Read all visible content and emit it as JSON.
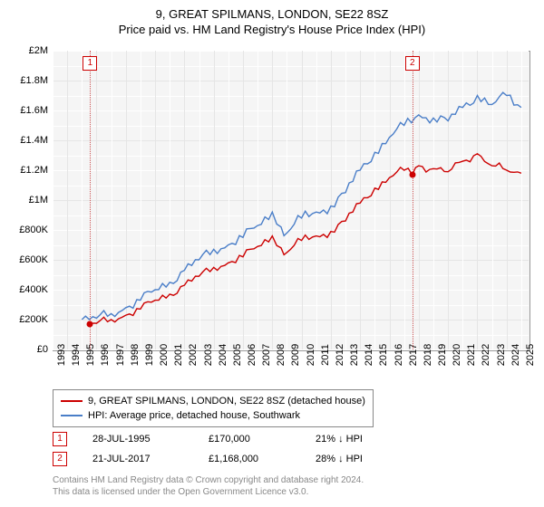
{
  "title": "9, GREAT SPILMANS, LONDON, SE22 8SZ",
  "subtitle": "Price paid vs. HM Land Registry's House Price Index (HPI)",
  "chart": {
    "type": "line",
    "background_color": "#f5f5f5",
    "grid_major_color": "#e5e5e5",
    "grid_minor_color": "#ffffff",
    "border_color": "#999999",
    "x_years": [
      1993,
      1994,
      1995,
      1996,
      1997,
      1998,
      1999,
      2000,
      2001,
      2002,
      2003,
      2004,
      2005,
      2006,
      2007,
      2008,
      2009,
      2010,
      2011,
      2012,
      2013,
      2014,
      2015,
      2016,
      2017,
      2018,
      2019,
      2020,
      2021,
      2022,
      2023,
      2024,
      2025
    ],
    "xlim": [
      1993,
      2025.5
    ],
    "y_ticks": [
      0,
      200000,
      400000,
      600000,
      800000,
      1000000,
      1200000,
      1400000,
      1600000,
      1800000,
      2000000
    ],
    "y_tick_labels": [
      "£0",
      "£200K",
      "£400K",
      "£600K",
      "£800K",
      "£1M",
      "£1.2M",
      "£1.4M",
      "£1.6M",
      "£1.8M",
      "£2M"
    ],
    "ylim": [
      0,
      2000000
    ],
    "label_fontsize": 11,
    "series": [
      {
        "name": "property",
        "label": "9, GREAT SPILMANS, LONDON, SE22 8SZ (detached house)",
        "color": "#cc0000",
        "line_width": 1.4,
        "data_x": [
          1995.56,
          1996,
          1997,
          1998,
          1999,
          2000,
          2001,
          2002,
          2003,
          2004,
          2005,
          2006,
          2007,
          2008,
          2008.6,
          2009,
          2010,
          2011,
          2012,
          2013,
          2014,
          2015,
          2016,
          2017,
          2017.56,
          2018,
          2019,
          2020,
          2021,
          2022,
          2023,
          2024,
          2025
        ],
        "data_y": [
          170000,
          175000,
          200000,
          230000,
          270000,
          330000,
          370000,
          430000,
          490000,
          550000,
          580000,
          620000,
          690000,
          760000,
          680000,
          650000,
          730000,
          760000,
          790000,
          860000,
          980000,
          1080000,
          1150000,
          1200000,
          1168000,
          1230000,
          1210000,
          1190000,
          1260000,
          1310000,
          1230000,
          1200000,
          1180000
        ]
      },
      {
        "name": "hpi",
        "label": "HPI: Average price, detached house, Southwark",
        "color": "#4a7ec8",
        "line_width": 1.4,
        "data_x": [
          1995,
          1996,
          1997,
          1998,
          1999,
          2000,
          2001,
          2002,
          2003,
          2004,
          2005,
          2006,
          2007,
          2008,
          2008.6,
          2009,
          2010,
          2011,
          2012,
          2013,
          2014,
          2015,
          2016,
          2017,
          2018,
          2019,
          2020,
          2021,
          2022,
          2023,
          2024,
          2025
        ],
        "data_y": [
          200000,
          210000,
          240000,
          280000,
          330000,
          400000,
          450000,
          530000,
          600000,
          670000,
          700000,
          750000,
          830000,
          920000,
          820000,
          780000,
          880000,
          920000,
          960000,
          1050000,
          1200000,
          1320000,
          1420000,
          1500000,
          1570000,
          1550000,
          1530000,
          1620000,
          1700000,
          1640000,
          1700000,
          1620000
        ]
      }
    ],
    "sale_markers": [
      {
        "n": "1",
        "x_year": 1995.56,
        "y_value": 170000
      },
      {
        "n": "2",
        "x_year": 2017.56,
        "y_value": 1168000
      }
    ]
  },
  "legend_items": [
    {
      "color": "#cc0000",
      "label": "9, GREAT SPILMANS, LONDON, SE22 8SZ (detached house)"
    },
    {
      "color": "#4a7ec8",
      "label": "HPI: Average price, detached house, Southwark"
    }
  ],
  "sales": [
    {
      "n": "1",
      "date": "28-JUL-1995",
      "price": "£170,000",
      "pct": "21% ↓ HPI"
    },
    {
      "n": "2",
      "date": "21-JUL-2017",
      "price": "£1,168,000",
      "pct": "28% ↓ HPI"
    }
  ],
  "footer_line1": "Contains HM Land Registry data © Crown copyright and database right 2024.",
  "footer_line2": "This data is licensed under the Open Government Licence v3.0."
}
